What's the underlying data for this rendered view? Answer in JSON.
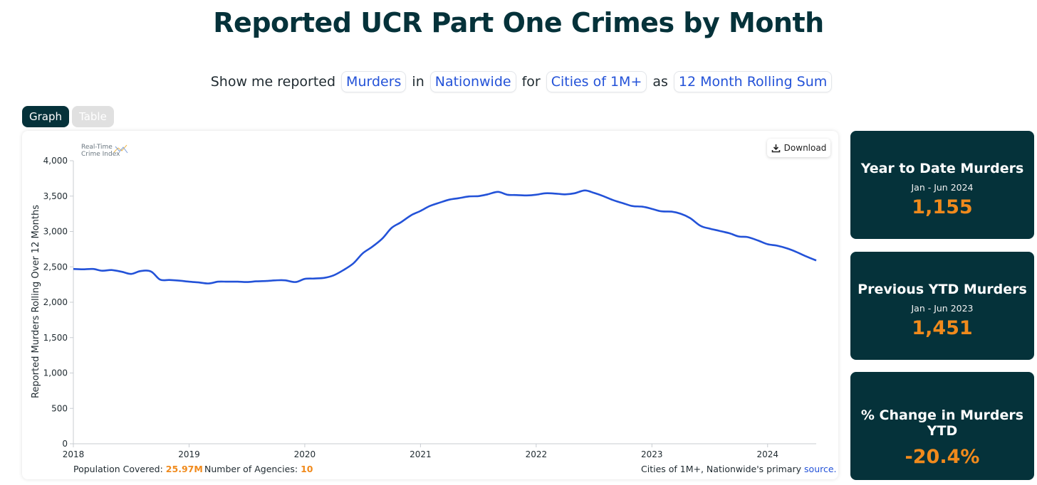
{
  "header": {
    "title": "Reported UCR Part One Crimes by Month"
  },
  "query": {
    "prefix": "Show me reported",
    "crime": "Murders",
    "w_in": "in",
    "region": "Nationwide",
    "w_for": "for",
    "group": "Cities of 1M+",
    "w_as": "as",
    "measure": "12 Month Rolling Sum"
  },
  "tabs": {
    "graph": "Graph",
    "table": "Table"
  },
  "chart": {
    "download_label": "Download",
    "logo_line1": "Real-Time",
    "logo_line2": "Crime Index",
    "line_color": "#2352d8"
  },
  "chart_data": {
    "type": "line",
    "title": "",
    "xlabel": "",
    "ylabel": "Reported Murders Rolling Over 12 Months",
    "ylim": [
      0,
      4000
    ],
    "yticks": [
      "0",
      "500",
      "1,000",
      "1,500",
      "2,000",
      "2,500",
      "3,000",
      "3,500",
      "4,000"
    ],
    "xticks": [
      "2018",
      "2019",
      "2020",
      "2021",
      "2022",
      "2023",
      "2024"
    ],
    "grid": false,
    "series": [
      {
        "x": [
          2018.0,
          2018.08,
          2018.17,
          2018.25,
          2018.33,
          2018.42,
          2018.5,
          2018.58,
          2018.67,
          2018.75,
          2018.83,
          2018.92,
          2019.0,
          2019.08,
          2019.17,
          2019.25,
          2019.33,
          2019.42,
          2019.5,
          2019.58,
          2019.67,
          2019.75,
          2019.83,
          2019.92,
          2020.0,
          2020.08,
          2020.17,
          2020.25,
          2020.33,
          2020.42,
          2020.5,
          2020.58,
          2020.67,
          2020.75,
          2020.83,
          2020.92,
          2021.0,
          2021.08,
          2021.17,
          2021.25,
          2021.33,
          2021.42,
          2021.5,
          2021.58,
          2021.67,
          2021.75,
          2021.83,
          2021.92,
          2022.0,
          2022.08,
          2022.17,
          2022.25,
          2022.33,
          2022.42,
          2022.5,
          2022.58,
          2022.67,
          2022.75,
          2022.83,
          2022.92,
          2023.0,
          2023.08,
          2023.17,
          2023.25,
          2023.33,
          2023.42,
          2023.5,
          2023.58,
          2023.67,
          2023.75,
          2023.83,
          2023.92,
          2024.0,
          2024.08,
          2024.17,
          2024.25,
          2024.33,
          2024.42
        ],
        "values": [
          2470,
          2465,
          2470,
          2445,
          2455,
          2430,
          2400,
          2440,
          2435,
          2320,
          2315,
          2305,
          2290,
          2280,
          2265,
          2290,
          2290,
          2290,
          2285,
          2295,
          2300,
          2310,
          2310,
          2285,
          2330,
          2335,
          2345,
          2380,
          2450,
          2550,
          2690,
          2780,
          2900,
          3050,
          3130,
          3230,
          3290,
          3360,
          3410,
          3450,
          3470,
          3495,
          3500,
          3525,
          3560,
          3520,
          3515,
          3510,
          3520,
          3540,
          3535,
          3525,
          3540,
          3580,
          3545,
          3500,
          3440,
          3400,
          3360,
          3350,
          3320,
          3285,
          3280,
          3250,
          3190,
          3080,
          3040,
          3010,
          2975,
          2930,
          2920,
          2870,
          2820,
          2800,
          2760,
          2710,
          2650,
          2590
        ]
      }
    ]
  },
  "footer": {
    "population_label": "Population Covered:",
    "population_value": "25.97M",
    "agencies_label": "Number of Agencies:",
    "agencies_value": "10",
    "source_text": "Cities of 1M+, Nationwide's primary",
    "source_link": "source."
  },
  "stats": [
    {
      "title": "Year to Date Murders",
      "subtitle": "Jan - Jun 2024",
      "value": "1,155"
    },
    {
      "title": "Previous YTD Murders",
      "subtitle": "Jan - Jun 2023",
      "value": "1,451"
    },
    {
      "title": "% Change in Murders YTD",
      "subtitle": "",
      "value": "-20.4%"
    }
  ],
  "colors": {
    "accent_dark": "#05323a",
    "value_orange": "#f08a1c",
    "link_blue": "#2352d8"
  }
}
